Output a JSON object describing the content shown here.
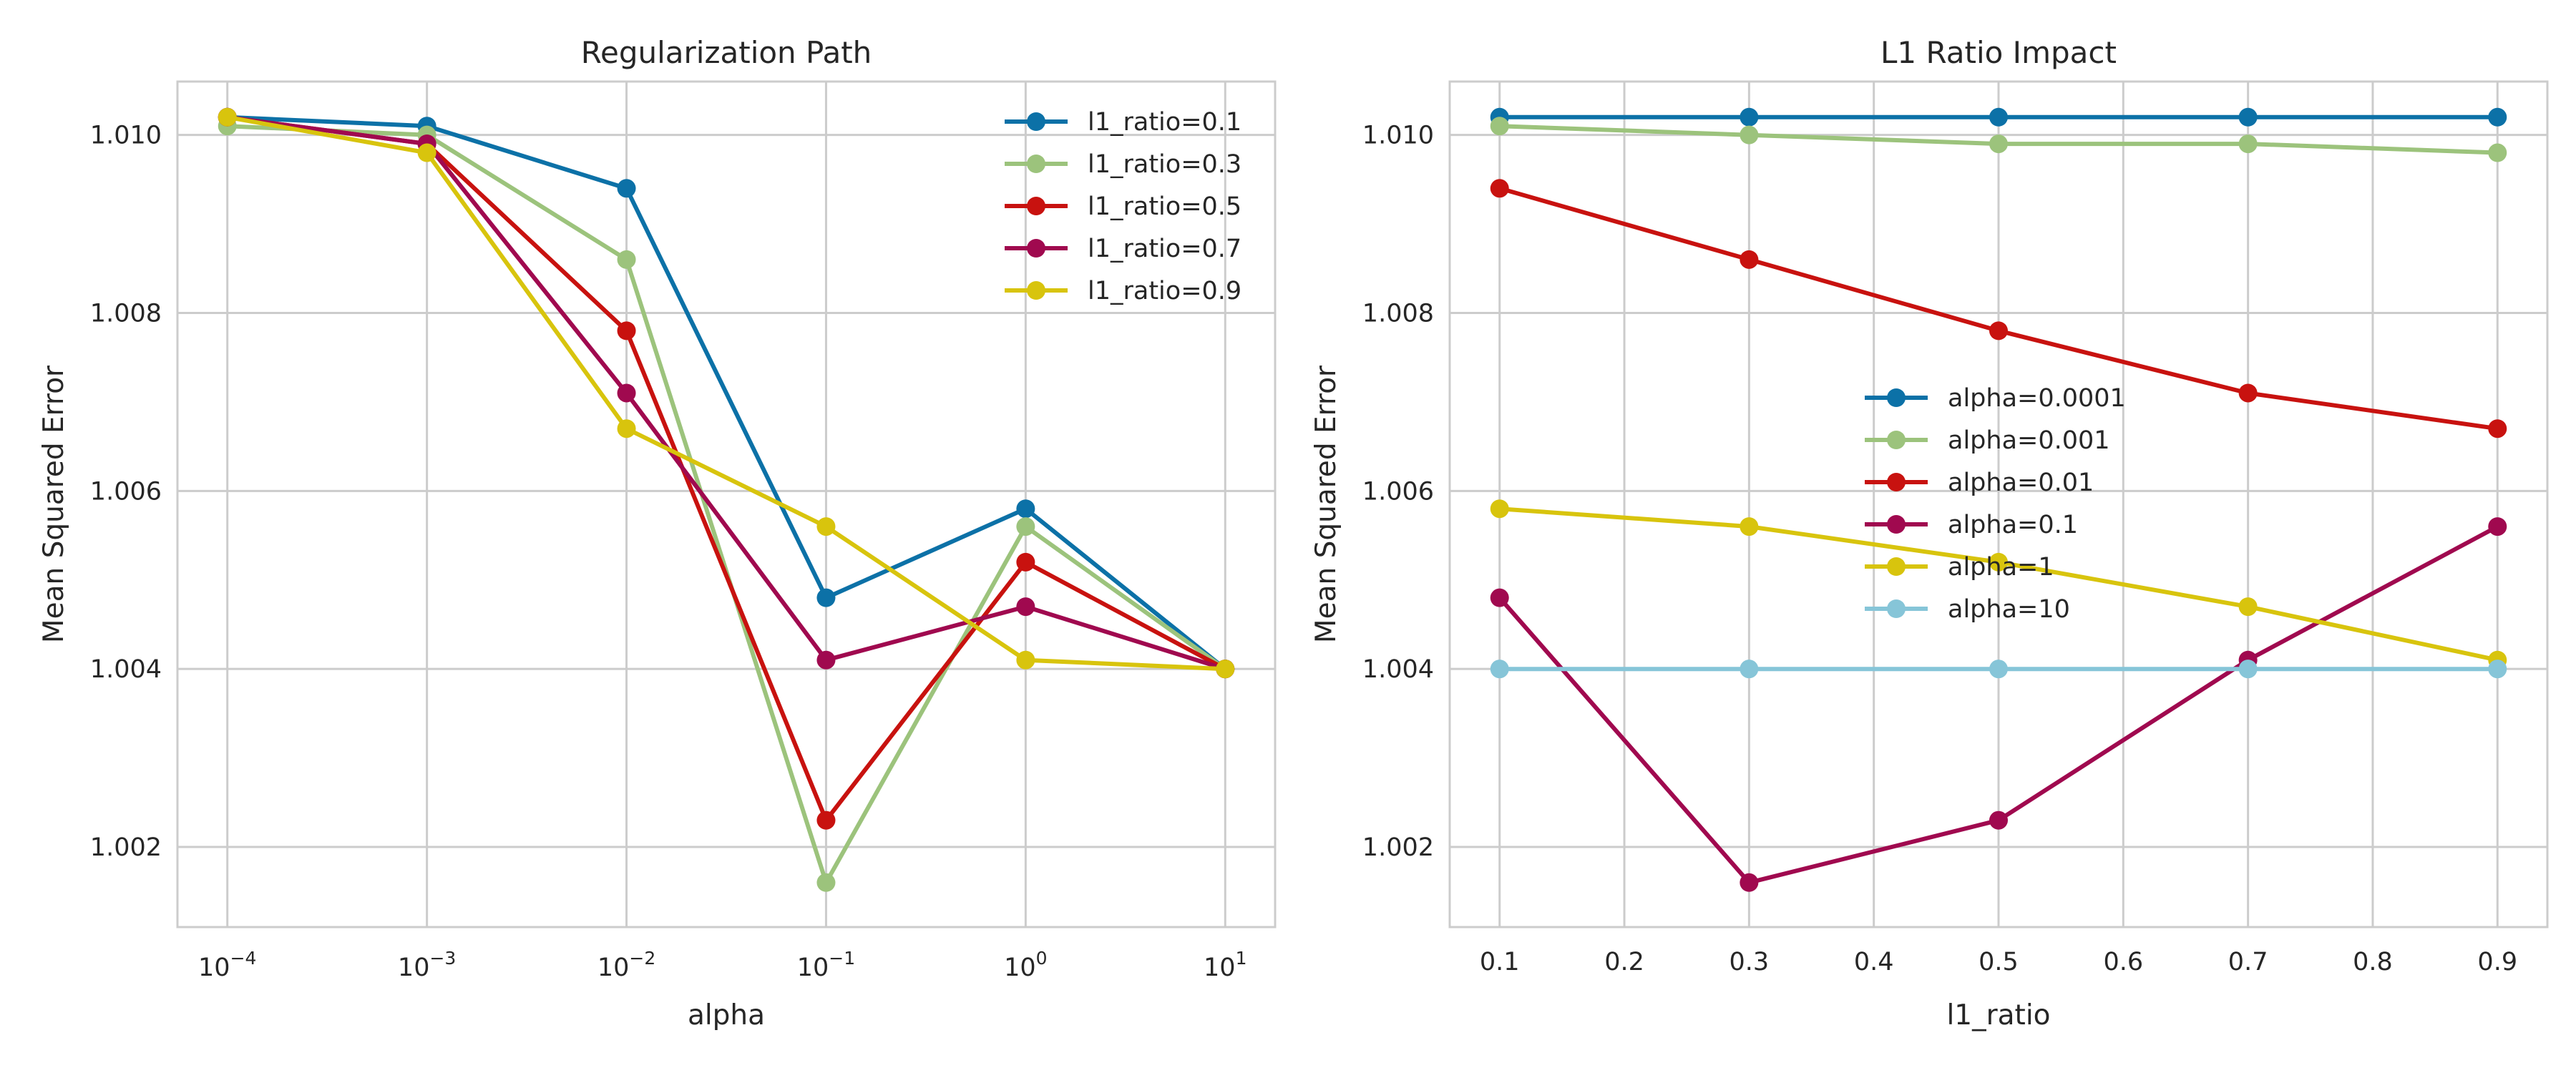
{
  "chart_data": [
    {
      "type": "line",
      "title": "Regularization Path",
      "xlabel": "alpha",
      "ylabel": "Mean Squared Error",
      "xscale": "log",
      "x": [
        0.0001,
        0.001,
        0.01,
        0.1,
        1,
        10
      ],
      "xticks": [
        {
          "base": "10",
          "exp": "−4"
        },
        {
          "base": "10",
          "exp": "−3"
        },
        {
          "base": "10",
          "exp": "−2"
        },
        {
          "base": "10",
          "exp": "−1"
        },
        {
          "base": "10",
          "exp": "0"
        },
        {
          "base": "10",
          "exp": "1"
        }
      ],
      "ylim": [
        1.0011,
        1.0106
      ],
      "yticks": [
        "1.002",
        "1.004",
        "1.006",
        "1.008",
        "1.010"
      ],
      "grid": true,
      "legend_position": "top-right",
      "series": [
        {
          "name": "l1_ratio=0.1",
          "color": "#0c71a7",
          "values": [
            1.0102,
            1.0101,
            1.0094,
            1.0048,
            1.0058,
            1.004
          ]
        },
        {
          "name": "l1_ratio=0.3",
          "color": "#9cc37c",
          "values": [
            1.0101,
            1.01,
            1.0086,
            1.0016,
            1.0056,
            1.004
          ]
        },
        {
          "name": "l1_ratio=0.5",
          "color": "#c8120f",
          "values": [
            1.0102,
            1.0099,
            1.0078,
            1.0023,
            1.0052,
            1.004
          ]
        },
        {
          "name": "l1_ratio=0.7",
          "color": "#a0094f",
          "values": [
            1.0102,
            1.0099,
            1.0071,
            1.0041,
            1.0047,
            1.004
          ]
        },
        {
          "name": "l1_ratio=0.9",
          "color": "#d8c40d",
          "values": [
            1.0102,
            1.0098,
            1.0067,
            1.0056,
            1.0041,
            1.004
          ]
        }
      ]
    },
    {
      "type": "line",
      "title": "L1 Ratio Impact",
      "xlabel": "l1_ratio",
      "ylabel": "Mean Squared Error",
      "x": [
        0.1,
        0.3,
        0.5,
        0.7,
        0.9
      ],
      "xlim": [
        0.06,
        0.94
      ],
      "xticks": [
        "0.1",
        "0.2",
        "0.3",
        "0.4",
        "0.5",
        "0.6",
        "0.7",
        "0.8",
        "0.9"
      ],
      "ylim": [
        1.0011,
        1.0106
      ],
      "yticks": [
        "1.002",
        "1.004",
        "1.006",
        "1.008",
        "1.010"
      ],
      "grid": true,
      "legend_position": "center",
      "series": [
        {
          "name": "alpha=0.0001",
          "color": "#0c71a7",
          "values": [
            1.0102,
            1.0102,
            1.0102,
            1.0102,
            1.0102
          ]
        },
        {
          "name": "alpha=0.001",
          "color": "#9cc37c",
          "values": [
            1.0101,
            1.01,
            1.0099,
            1.0099,
            1.0098
          ]
        },
        {
          "name": "alpha=0.01",
          "color": "#c8120f",
          "values": [
            1.0094,
            1.0086,
            1.0078,
            1.0071,
            1.0067
          ]
        },
        {
          "name": "alpha=0.1",
          "color": "#a0094f",
          "values": [
            1.0048,
            1.0016,
            1.0023,
            1.0041,
            1.0056
          ]
        },
        {
          "name": "alpha=1",
          "color": "#d8c40d",
          "values": [
            1.0058,
            1.0056,
            1.0052,
            1.0047,
            1.0041
          ]
        },
        {
          "name": "alpha=10",
          "color": "#86c5d8",
          "values": [
            1.004,
            1.004,
            1.004,
            1.004,
            1.004
          ]
        }
      ]
    }
  ]
}
